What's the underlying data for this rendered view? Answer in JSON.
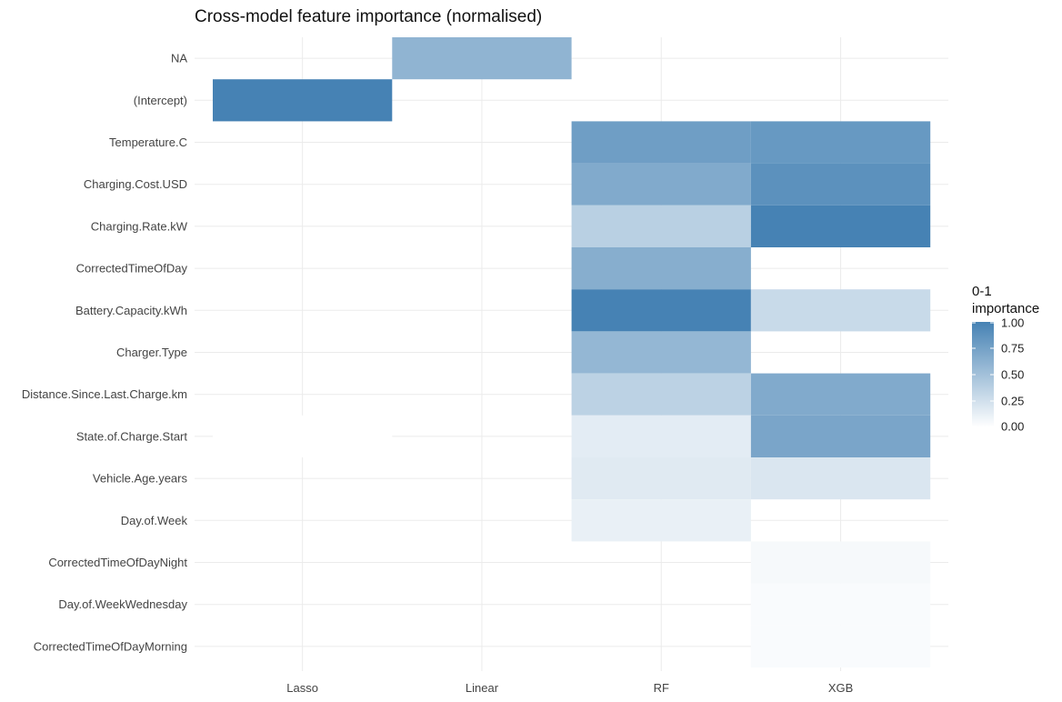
{
  "chart_data": {
    "type": "heatmap",
    "title": "Cross-model feature importance (normalised)",
    "xlabel": "",
    "ylabel": "",
    "x_categories": [
      "Lasso",
      "Linear",
      "RF",
      "XGB"
    ],
    "y_categories": [
      "NA",
      "(Intercept)",
      "Temperature.C",
      "Charging.Cost.USD",
      "Charging.Rate.kW",
      "CorrectedTimeOfDay",
      "Battery.Capacity.kWh",
      "Charger.Type",
      "Distance.Since.Last.Charge.km",
      "State.of.Charge.Start",
      "Vehicle.Age.years",
      "Day.of.Week",
      "CorrectedTimeOfDayNight",
      "Day.of.WeekWednesday",
      "CorrectedTimeOfDayMorning"
    ],
    "cells": [
      {
        "x": "Linear",
        "y": "NA",
        "value": 0.6
      },
      {
        "x": "Lasso",
        "y": "(Intercept)",
        "value": 1.0
      },
      {
        "x": "Lasso",
        "y": "State.of.Charge.Start",
        "value": 0.0
      },
      {
        "x": "RF",
        "y": "Temperature.C",
        "value": 0.78
      },
      {
        "x": "RF",
        "y": "Charging.Cost.USD",
        "value": 0.68
      },
      {
        "x": "RF",
        "y": "Charging.Rate.kW",
        "value": 0.38
      },
      {
        "x": "RF",
        "y": "CorrectedTimeOfDay",
        "value": 0.65
      },
      {
        "x": "RF",
        "y": "Battery.Capacity.kWh",
        "value": 1.0
      },
      {
        "x": "RF",
        "y": "Charger.Type",
        "value": 0.58
      },
      {
        "x": "RF",
        "y": "Distance.Since.Last.Charge.km",
        "value": 0.36
      },
      {
        "x": "RF",
        "y": "State.of.Charge.Start",
        "value": 0.15
      },
      {
        "x": "RF",
        "y": "Vehicle.Age.years",
        "value": 0.17
      },
      {
        "x": "RF",
        "y": "Day.of.Week",
        "value": 0.12
      },
      {
        "x": "XGB",
        "y": "Temperature.C",
        "value": 0.82
      },
      {
        "x": "XGB",
        "y": "Charging.Cost.USD",
        "value": 0.88
      },
      {
        "x": "XGB",
        "y": "Charging.Rate.kW",
        "value": 1.0
      },
      {
        "x": "XGB",
        "y": "Battery.Capacity.kWh",
        "value": 0.3
      },
      {
        "x": "XGB",
        "y": "Distance.Since.Last.Charge.km",
        "value": 0.68
      },
      {
        "x": "XGB",
        "y": "State.of.Charge.Start",
        "value": 0.72
      },
      {
        "x": "XGB",
        "y": "Vehicle.Age.years",
        "value": 0.2
      },
      {
        "x": "XGB",
        "y": "CorrectedTimeOfDayNight",
        "value": 0.05
      },
      {
        "x": "XGB",
        "y": "Day.of.WeekWednesday",
        "value": 0.03
      },
      {
        "x": "XGB",
        "y": "CorrectedTimeOfDayMorning",
        "value": 0.03
      }
    ],
    "legend": {
      "title_line1": "0-1",
      "title_line2": "importance",
      "ticks": [
        "1.00",
        "0.75",
        "0.50",
        "0.25",
        "0.00"
      ],
      "placement": "right",
      "low_color": "#ffffff",
      "high_color": "#4682b4"
    },
    "value_range": [
      0,
      1
    ],
    "grid": true
  }
}
